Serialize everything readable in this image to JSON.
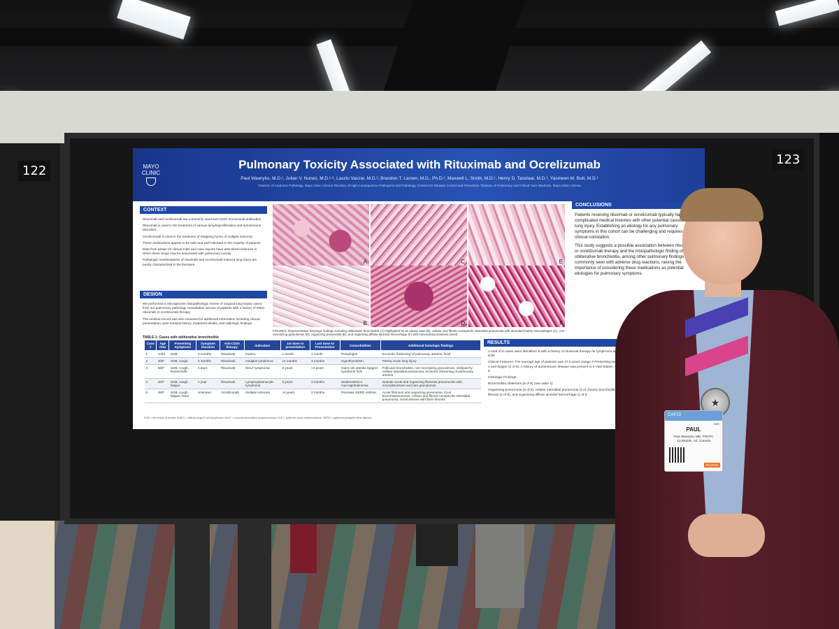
{
  "booths": {
    "left_number": "122",
    "right_number": "123"
  },
  "poster": {
    "institution_logo": [
      "MAYO",
      "CLINIC"
    ],
    "title": "Pulmonary Toxicity Associated with Rituximab and Ocrelizumab",
    "authors": "Paul Wawryko, M.D.¹, Julian V. Nunez, M.D.¹·², Laszlo Vaszar, M.D.³, Brandon T. Larsen, M.D., Ph.D.¹, Maxwell L. Smith, M.D.¹, Henry D. Tazelaar, M.D.¹, Yasmeen M. Butt, M.D.¹",
    "affiliations": "¹Division of Anatomic Pathology, Mayo Clinic Arizona ²Division of High-Consequence Pathogens and Pathology, Centers for Disease Control and Prevention ³Division of Pulmonary and Critical Care Medicine, Mayo Clinic Arizona",
    "context": {
      "heading": "CONTEXT",
      "items": [
        "Rituximab and ocrelizumab are commonly used anti-CD20 monoclonal antibodies",
        "Rituximab is used in the treatment of various lymphoproliferative and autoimmune disorders",
        "Ocrelizumab is used in the treatment of relapsing forms of multiple sclerosis",
        "These medications appear to be safe and well tolerated in the majority of patients",
        "Data from phase I/II clinical trials and case reports have described instances in which these drugs may be associated with pulmonary toxicity",
        "Pathologic manifestations of rituximab and ocrelizumab induced lung injury are poorly characterized in the literature"
      ]
    },
    "design": {
      "heading": "DESIGN",
      "items": [
        "We performed a retrospective histopathologic review of surgical lung biopsy cases from our pulmonary pathology consultation service of patients with a history of either rituximab or ocrelizumab therapy",
        "The medical record was also reviewed for additional information including clinical presentation, past medical history, treatment details, and radiologic findings."
      ]
    },
    "table": {
      "title": "TABLE 1: Cases with obliterative bronchiolitis",
      "headers": [
        "Case #",
        "Age /Sex",
        "Presenting Symptoms",
        "Symptom Duration",
        "Anti-CD20 therapy",
        "Indication",
        "1st dose to presentation",
        "Last dose to Presentation",
        "Comorbidities",
        "Additional histologic findings"
      ],
      "rows": [
        [
          "1",
          "44/M",
          "SOB",
          "3 months",
          "Rituximab",
          "DLBCL",
          "1 month",
          "1 month",
          "Pemphigus",
          "Eccentric thickening of pulmonary arteries, focal"
        ],
        [
          "2",
          "40/F",
          "SOB, cough",
          "4 months",
          "Rituximab",
          "Hodgkin lymphoma",
          "14 months",
          "4 months",
          "Hypothyroidism",
          "Patchy acute lung injury"
        ],
        [
          "3",
          "58/F",
          "SOB, cough, fevers/chills",
          "2 days",
          "Rituximab",
          "MALT lymphoma",
          "6 years",
          ">4 years",
          "Giant cell arteritis Sjogren syndrome SLE",
          "Follicular bronchiolitis, non-necrotizing granulomas, mild/patchy cellular interstitial pneumonia, eccentric thickening of pulmonary arteries"
        ],
        [
          "4",
          "46/F",
          "SOB, cough, fatigue",
          "1 year",
          "Rituximab",
          "Lymphoplasmacytic lymphoma",
          "3 years",
          "2 months",
          "Waldenström's macroglobulinemia",
          "Nodular acute and organizing fibrinous pneumonitis with microabscesses and rare granulomas"
        ],
        [
          "5",
          "38/F",
          "SOB, cough, fatigue, fever",
          "Unknown",
          "Ocrelizumab",
          "Multiple sclerosis",
          ">4 years",
          "2 months",
          "Psoriasis GERD Asthma",
          "Acute fibrinous and organizing pneumonia, focal bronchopneumonia, cellular and fibrotic nonspecific interstitial pneumonia, small arteries with fibrin thrombi"
        ]
      ],
      "footnote": "SOB = shortness of breath; DLBCL = diffuse large B-cell lymphoma; MALT = mucosa associated lymphoid tissue; SLE = systemic lupus erythematosus; GERD = gastroesophageal reflux disease"
    },
    "figures": {
      "labels": [
        "A",
        "C",
        "E",
        "B",
        "D",
        "F"
      ],
      "caption": "FIGURES: Representative histologic findings including obliterative bronchiolitis (A) highlighted by an elastic stain (B), cellular and fibrotic nonspecific interstitial pneumonia with abundant foamy macrophages (C), non-necrotizing granulomas (D), organizing pneumonia (E), and organizing diffuse alveolar hemorrhage (F) with mineralizing elastosis (inset)"
    },
    "conclusions": {
      "heading": "CONCLUSIONS",
      "items": [
        "Patients receiving rituximab or ocrelizumab typically have complicated medical histories with other potential causes of lung injury. Establishing an etiology for any pulmonary symptoms in this cohort can be challenging and requires careful clinical correlation.",
        "This study suggests a possible association between rituximab or ocrelizumab therapy and the histopathologic finding of obliterative bronchiolitis, among other pulmonary findings commonly seen with adverse drug reactions, raising the importance of considering these medications as potential etiologies for pulmonary symptoms."
      ]
    },
    "results": {
      "heading": "RESULTS",
      "items": [
        "A total of 8 cases were identified: 6 with a history of rituximab therapy for lymphoma and 2 with a history of ocrelizumab therapy for multiple scler",
        "Clinical Features: The average age of patients was 47.5 years (range 3 Presenting symptoms included shortness of breath (8 of 8), cough (4 o and fatigue (2 of 8). A history of autoimmune disease was present in 5 Vital Status: Alive (4 of 8), deceased (1 of 8), or lost to followup (3 of 8",
        "Histologic Findings",
        "Bronchiolitis obliterans (5 of 8) (see table 1)",
        "Organizing pneumonia (5 of 8), cellular interstitial pneumonia (2 of chronic bronchiolitis (2 of 8), non-necrotizing granulomas (2 of 8), in fibrosis (2 of 8), and organizing diffuse alveolar hemorrhage (1 of 8"
      ]
    }
  },
  "badge": {
    "event": "CAP23",
    "name": "PAUL",
    "cme": "CME",
    "detail": "Paul Wawryko, MD, FRCPC Scottsdale, AZ, Canada",
    "tag": "#CAP23"
  },
  "colors": {
    "poster_blue": "#1f47a6",
    "jacket": "#5a1f2b",
    "shirt": "#9eb5d3"
  }
}
